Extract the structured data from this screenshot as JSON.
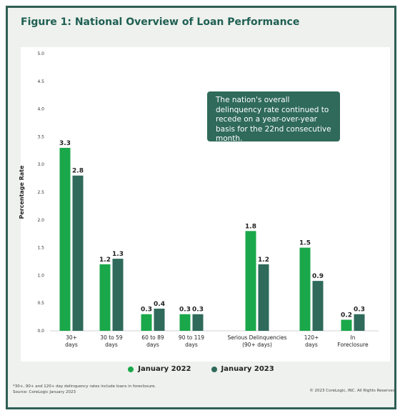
{
  "title": "Figure 1: National Overview of Loan Performance",
  "callout": "The nation's overall delinquency rate continued to recede on a year-over-year basis for the 22nd consecutive month.",
  "footnote": {
    "line1": "*30+, 90+ and 120+ day delinquency rates include loans in foreclosure.",
    "line2": "Source: CoreLogic January 2023"
  },
  "copyright": "© 2023 CoreLogic, INC. All Rights Reserved.",
  "colors": {
    "jan2022": "#1aa84a",
    "jan2023": "#2f6a5b",
    "frame": "#2f5f55",
    "background": "#eef1ed"
  },
  "chart_data": {
    "type": "bar",
    "title": "Figure 1: National Overview of Loan Performance",
    "ylabel": "Percentage Rate",
    "xlabel": "",
    "ylim": [
      0,
      5
    ],
    "yticks": [
      "0.0",
      "0.5",
      "1.0",
      "1.5",
      "2.0",
      "2.5",
      "3.0",
      "3.5",
      "4.0",
      "4.5",
      "5.0"
    ],
    "grid": false,
    "legend_position": "bottom",
    "categories": [
      [
        "30+",
        "days"
      ],
      [
        "30 to 59",
        "days"
      ],
      [
        "60 to 89",
        "days"
      ],
      [
        "90 to 119",
        "days"
      ],
      [
        "Serious Delinquencies",
        "(90+ days)"
      ],
      [
        "120+",
        "days"
      ],
      [
        "In",
        "Foreclosure"
      ]
    ],
    "series": [
      {
        "name": "January 2022",
        "color": "#1aa84a",
        "values": [
          3.3,
          1.2,
          0.3,
          0.3,
          1.8,
          1.5,
          0.2
        ]
      },
      {
        "name": "January 2023",
        "color": "#2f6a5b",
        "values": [
          2.8,
          1.3,
          0.4,
          0.3,
          1.2,
          0.9,
          0.3
        ]
      }
    ]
  }
}
